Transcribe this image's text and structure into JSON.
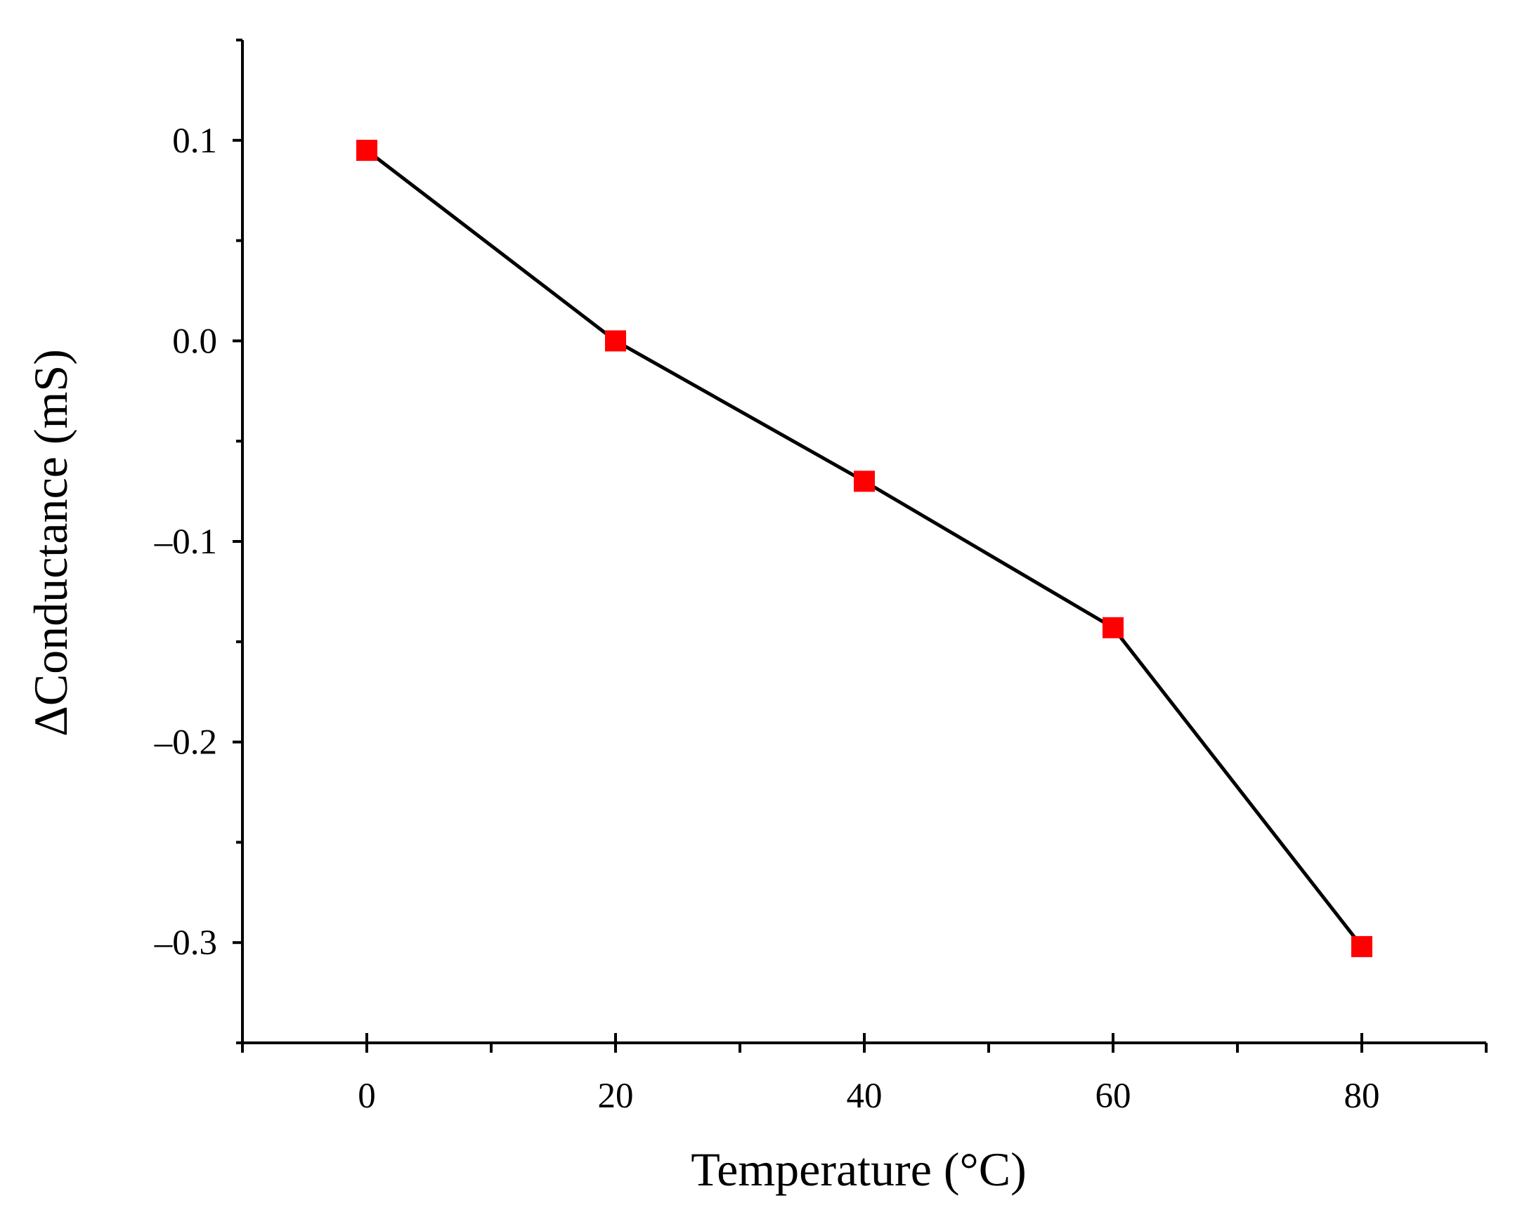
{
  "chart_data": {
    "type": "line",
    "xlabel": "Temperature (°C)",
    "ylabel": "ΔConductance (mS)",
    "xlim": [
      -10,
      90
    ],
    "ylim": [
      -0.35,
      0.15
    ],
    "x_ticks": [
      0,
      20,
      40,
      60,
      80
    ],
    "x_tick_labels": [
      "0",
      "20",
      "40",
      "60",
      "80"
    ],
    "x_minor_ticks": [
      -10,
      10,
      30,
      50,
      70,
      90
    ],
    "y_ticks": [
      0.1,
      0.0,
      -0.1,
      -0.2,
      -0.3
    ],
    "y_tick_labels": [
      "0.1",
      "0.0",
      "–0.1",
      "–0.2",
      "–0.3"
    ],
    "y_minor_ticks": [
      0.15,
      0.05,
      -0.05,
      -0.15,
      -0.25,
      -0.35
    ],
    "grid": false,
    "legend": "none",
    "series": [
      {
        "x": [
          0,
          20,
          40,
          60,
          80
        ],
        "y": [
          0.095,
          0.0,
          -0.07,
          -0.143,
          -0.302
        ],
        "marker": "square",
        "marker_color": "#ff0000",
        "line_color": "#000000"
      }
    ]
  }
}
